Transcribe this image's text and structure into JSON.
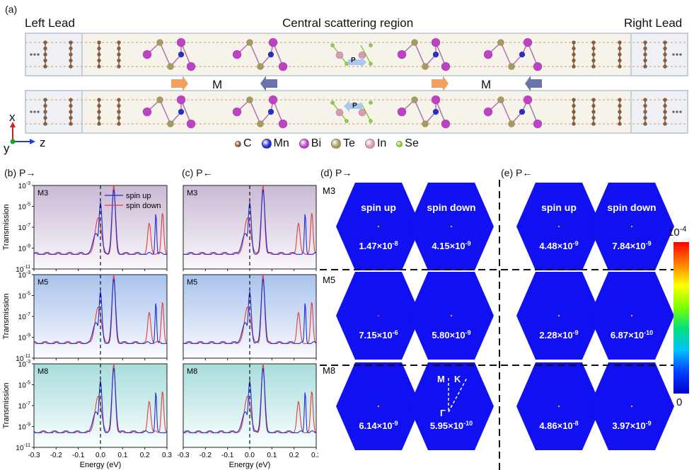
{
  "figure": {
    "panel_a": {
      "label": "(a)",
      "left_lead": "Left Lead",
      "central": "Central scattering region",
      "right_lead": "Right Lead",
      "m_label": "M",
      "p_label": "P",
      "axes": {
        "x": "x",
        "y": "y",
        "z": "z"
      },
      "legend": [
        {
          "symbol": "C",
          "color": "#8b5e3c"
        },
        {
          "symbol": "Mn",
          "color": "#2430c8"
        },
        {
          "symbol": "Bi",
          "color": "#c040c8"
        },
        {
          "symbol": "Te",
          "color": "#a89a5a"
        },
        {
          "symbol": "In",
          "color": "#d89ab8"
        },
        {
          "symbol": "Se",
          "color": "#8ccf3a"
        }
      ]
    },
    "panel_b": {
      "label": "(b) P→"
    },
    "panel_c": {
      "label": "(c) P←"
    },
    "panel_d": {
      "label": "(d) P→"
    },
    "panel_e": {
      "label": "(e) P←"
    },
    "colorbar": {
      "max": "10-4",
      "max_base": "10",
      "max_exp": "-4",
      "min": "0"
    }
  },
  "chart_data": [
    {
      "type": "line",
      "ylabel": "Transmission",
      "xlabel": "",
      "xlim": [
        -0.3,
        0.3
      ],
      "ylim_exp": [
        -11,
        -3
      ],
      "log_y": true,
      "panels": [
        {
          "id": "b-M3",
          "tag": "M3",
          "legend": [
            "spin up",
            "spin down"
          ]
        },
        {
          "id": "b-M5",
          "tag": "M5"
        },
        {
          "id": "b-M8",
          "tag": "M8"
        },
        {
          "id": "c-M3",
          "tag": "M3"
        },
        {
          "id": "c-M5",
          "tag": "M5"
        },
        {
          "id": "c-M8",
          "tag": "M8"
        }
      ],
      "x_ticks": [
        "-0.3",
        "-0.2",
        "-0.1",
        "0.0",
        "0.1",
        "0.2",
        "0.3"
      ],
      "y_ticks": [
        "10-11",
        "10-9",
        "10-7",
        "10-5",
        "10-3"
      ],
      "x_axis_title": "Energy (eV)",
      "series_colors": {
        "spin up": "#1f2ad8",
        "spin down": "#e0403c"
      }
    }
  ],
  "kspace": {
    "row_labels": [
      "M3",
      "M5",
      "M8"
    ],
    "col_titles": [
      "spin up",
      "spin down",
      "spin up",
      "spin down"
    ],
    "values": [
      [
        "1.47×10-8",
        "4.15×10-9",
        "4.48×10-9",
        "7.84×10-9"
      ],
      [
        "7.15×10-6",
        "5.80×10-9",
        "2.28×10-9",
        "6.87×10-10"
      ],
      [
        "6.14×10-9",
        "5.95×10-10",
        "4.86×10-8",
        "3.97×10-9"
      ]
    ],
    "bz_labels": {
      "M": "M",
      "K": "K",
      "G": "Γ"
    }
  }
}
